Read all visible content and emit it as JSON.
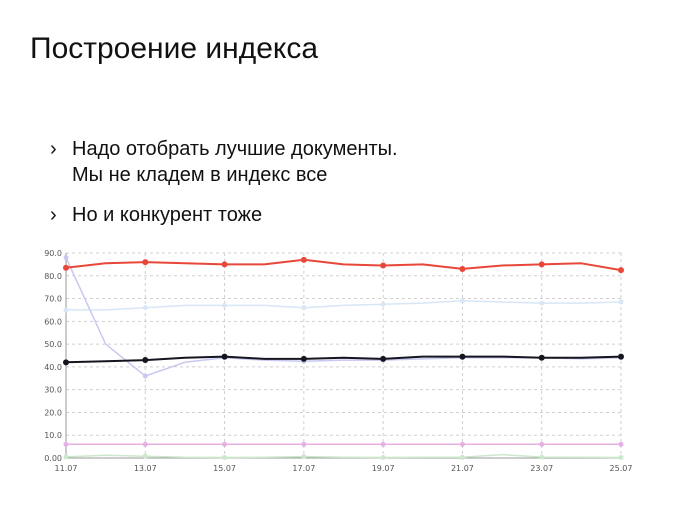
{
  "slide": {
    "title": "Построение индекса",
    "bullets": [
      {
        "marker": "›",
        "lines": [
          "Надо отобрать лучшие документы.",
          "Мы не кладем в индекс все"
        ]
      },
      {
        "marker": "›",
        "lines": [
          "Но и конкурент тоже"
        ]
      }
    ]
  },
  "chart_data": {
    "type": "line",
    "title": "",
    "xlabel": "",
    "ylabel": "",
    "x": [
      "11.07",
      "12.07",
      "13.07",
      "14.07",
      "15.07",
      "16.07",
      "17.07",
      "18.07",
      "19.07",
      "20.07",
      "21.07",
      "22.07",
      "23.07",
      "24.07",
      "25.07"
    ],
    "x_tick_labels": [
      "11.07",
      "13.07",
      "15.07",
      "17.07",
      "19.07",
      "21.07",
      "23.07",
      "25.07"
    ],
    "y_tick_labels": [
      "0.00",
      "10.0",
      "20.0",
      "30.0",
      "40.0",
      "50.0",
      "60.0",
      "70.0",
      "80.0",
      "90.0"
    ],
    "ylim": [
      0,
      90
    ],
    "grid": "dashed",
    "legend": "none",
    "series": [
      {
        "color": "#e8473a",
        "markers": true,
        "width": 2,
        "values": [
          83.5,
          85.5,
          86,
          85.5,
          85,
          85,
          87,
          85,
          84.5,
          85,
          83,
          84.5,
          85,
          85.5,
          82.5
        ]
      },
      {
        "color": "#d8e6f6",
        "markers": true,
        "width": 1.5,
        "values": [
          65,
          65,
          66,
          67,
          67,
          67,
          66,
          67,
          67.5,
          68,
          69,
          68.5,
          68,
          68,
          68.5
        ]
      },
      {
        "color": "#c8c8f0",
        "markers": true,
        "width": 1.5,
        "values": [
          88,
          50,
          36,
          42,
          44,
          43,
          42.5,
          43,
          43,
          43.5,
          44,
          44,
          44,
          43.5,
          44
        ]
      },
      {
        "color": "#151520",
        "markers": true,
        "width": 2,
        "values": [
          42,
          42.5,
          43,
          44,
          44.5,
          43.5,
          43.5,
          44,
          43.5,
          44.5,
          44.5,
          44.5,
          44,
          44,
          44.5
        ]
      },
      {
        "color": "#e8b0e2",
        "markers": true,
        "width": 1.5,
        "values": [
          6,
          6,
          6,
          6,
          6,
          6,
          6,
          6,
          6,
          6,
          6,
          6,
          6,
          6,
          6
        ]
      },
      {
        "color": "#cce8cc",
        "markers": true,
        "width": 1.5,
        "values": [
          0.5,
          1.2,
          0.8,
          0.3,
          0.2,
          0.3,
          0.6,
          0.3,
          0.2,
          0.3,
          0.3,
          1.5,
          0.4,
          0.3,
          0.2
        ]
      }
    ]
  }
}
